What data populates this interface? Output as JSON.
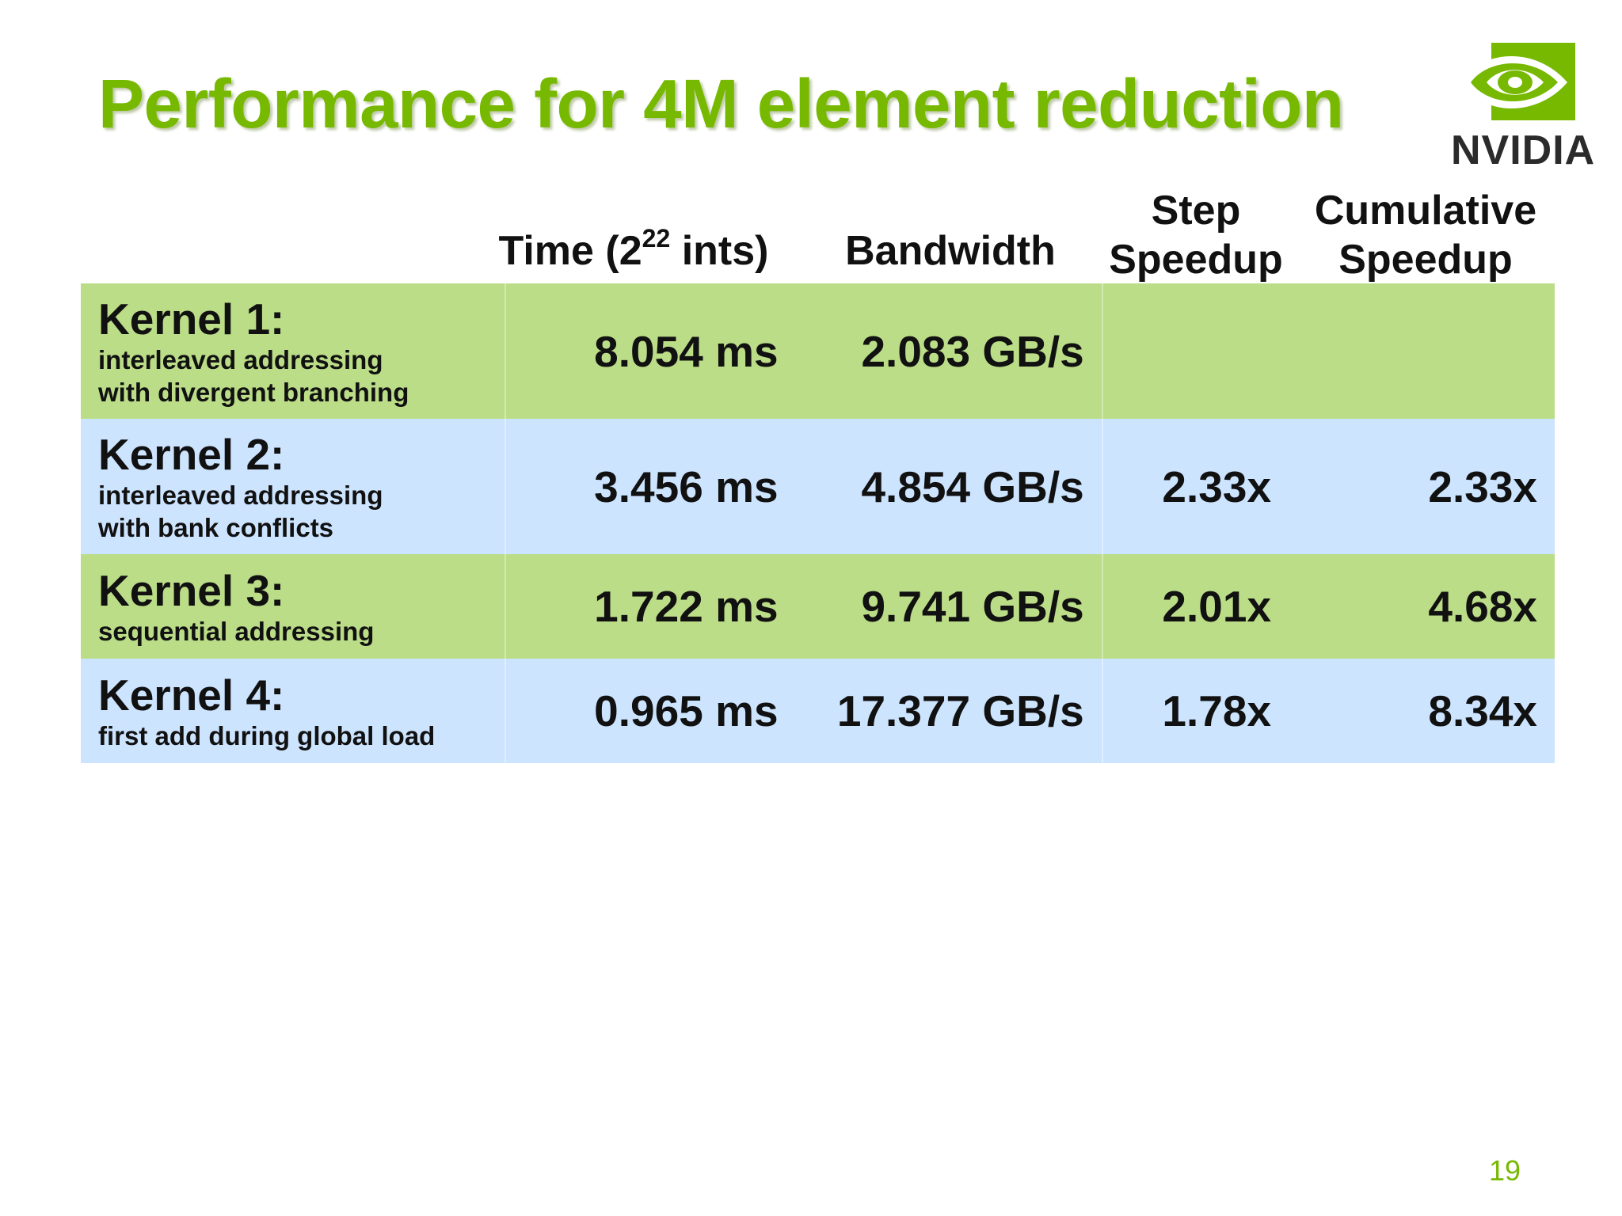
{
  "slide": {
    "title": "Performance for 4M element reduction",
    "page_number": "19",
    "logo": {
      "wordmark": "NVIDIA",
      "icon": "nvidia-eye-logo"
    }
  },
  "colors": {
    "title_green": "#76b900",
    "row_green": "#bbdd87",
    "row_blue": "#cde4ff",
    "logo_green": "#76b900"
  },
  "table": {
    "headers": {
      "time_pre": "Time (2",
      "time_exp": "22",
      "time_post": " ints)",
      "bandwidth": "Bandwidth",
      "step_line1": "Step",
      "step_line2": "Speedup",
      "cumulative_line1": "Cumulative",
      "cumulative_line2": "Speedup"
    },
    "rows": [
      {
        "name": "Kernel 1:",
        "desc_line1": "interleaved addressing",
        "desc_line2": "with divergent branching",
        "time": "8.054 ms",
        "bandwidth": "2.083 GB/s",
        "step": "",
        "cumulative": ""
      },
      {
        "name": "Kernel 2:",
        "desc_line1": "interleaved addressing",
        "desc_line2": "with bank conflicts",
        "time": "3.456 ms",
        "bandwidth": "4.854 GB/s",
        "step": "2.33x",
        "cumulative": "2.33x"
      },
      {
        "name": "Kernel 3:",
        "desc_line1": "sequential addressing",
        "desc_line2": "",
        "time": "1.722 ms",
        "bandwidth": "9.741 GB/s",
        "step": "2.01x",
        "cumulative": "4.68x"
      },
      {
        "name": "Kernel 4:",
        "desc_line1": "first add during global load",
        "desc_line2": "",
        "time": "0.965 ms",
        "bandwidth": "17.377 GB/s",
        "step": "1.78x",
        "cumulative": "8.34x"
      }
    ]
  }
}
